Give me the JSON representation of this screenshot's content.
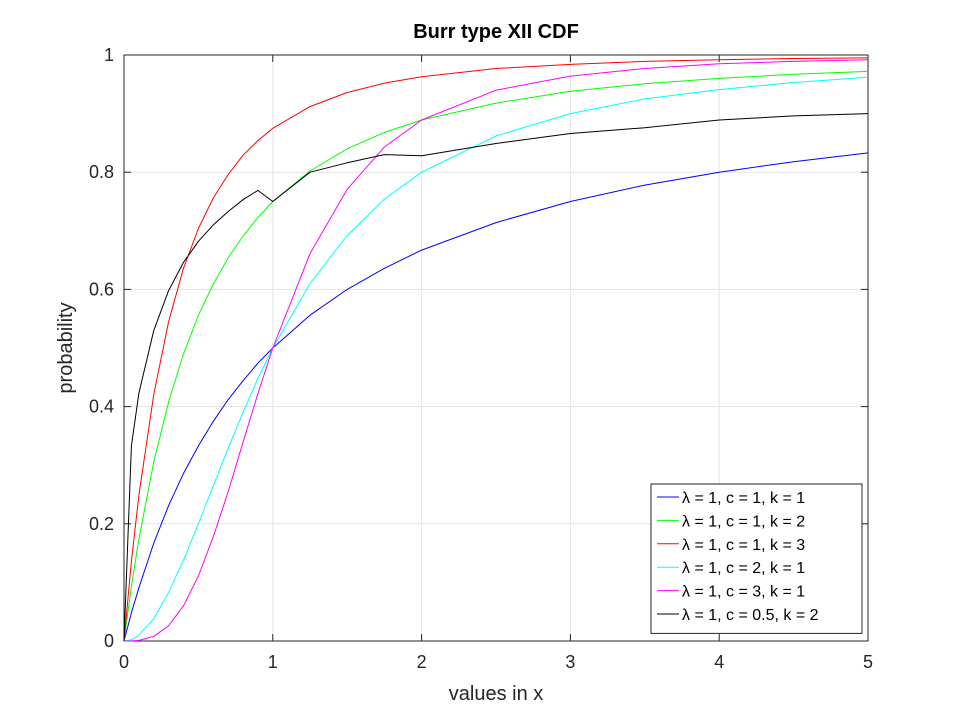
{
  "chart_data": {
    "type": "line",
    "title": "Burr type XII CDF",
    "xlabel": "values in x",
    "ylabel": "probability",
    "xlim": [
      0,
      5
    ],
    "ylim": [
      0,
      1
    ],
    "xticks": [
      0,
      1,
      2,
      3,
      4,
      5
    ],
    "yticks": [
      0,
      0.2,
      0.4,
      0.6,
      0.8,
      1
    ],
    "xtick_labels": [
      "0",
      "1",
      "2",
      "3",
      "4",
      "5"
    ],
    "ytick_labels": [
      "0",
      "0.2",
      "0.4",
      "0.6",
      "0.8",
      "1"
    ],
    "grid": true,
    "legend_position": "bottom-right",
    "x": [
      0,
      0.05,
      0.1,
      0.2,
      0.3,
      0.4,
      0.5,
      0.6,
      0.7,
      0.8,
      0.9,
      1,
      1.25,
      1.5,
      1.75,
      2,
      2.5,
      3,
      3.5,
      4,
      4.5,
      5
    ],
    "series": [
      {
        "name": "λ = 1, c = 1, k = 1",
        "color": "#0000ff",
        "values": [
          0,
          0.048,
          0.091,
          0.167,
          0.231,
          0.286,
          0.333,
          0.375,
          0.412,
          0.444,
          0.474,
          0.5,
          0.556,
          0.6,
          0.636,
          0.667,
          0.714,
          0.75,
          0.778,
          0.8,
          0.818,
          0.833
        ]
      },
      {
        "name": "λ = 1, c = 1, k = 2",
        "color": "#00ff00",
        "values": [
          0,
          0.093,
          0.174,
          0.306,
          0.408,
          0.49,
          0.556,
          0.609,
          0.654,
          0.691,
          0.723,
          0.75,
          0.802,
          0.84,
          0.868,
          0.889,
          0.918,
          0.938,
          0.951,
          0.96,
          0.967,
          0.972
        ]
      },
      {
        "name": "λ = 1, c = 1, k = 3",
        "color": "#ff0000",
        "values": [
          0,
          0.136,
          0.249,
          0.421,
          0.545,
          0.636,
          0.704,
          0.756,
          0.796,
          0.829,
          0.854,
          0.875,
          0.912,
          0.936,
          0.952,
          0.963,
          0.977,
          0.984,
          0.989,
          0.992,
          0.994,
          0.995
        ]
      },
      {
        "name": "λ = 1, c = 2, k = 1",
        "color": "#00ffff",
        "values": [
          0,
          0.002,
          0.01,
          0.038,
          0.083,
          0.138,
          0.2,
          0.265,
          0.329,
          0.39,
          0.448,
          0.5,
          0.61,
          0.692,
          0.754,
          0.8,
          0.862,
          0.9,
          0.925,
          0.941,
          0.953,
          0.962
        ]
      },
      {
        "name": "λ = 1, c = 3, k = 1",
        "color": "#ff00ff",
        "values": [
          0,
          0.0001,
          0.001,
          0.008,
          0.026,
          0.06,
          0.111,
          0.178,
          0.255,
          0.339,
          0.422,
          0.5,
          0.661,
          0.771,
          0.843,
          0.889,
          0.94,
          0.964,
          0.977,
          0.985,
          0.989,
          0.992
        ]
      },
      {
        "name": "λ = 1, c = 0.5, k = 2",
        "color": "#000000",
        "values": [
          0,
          0.333,
          0.423,
          0.53,
          0.598,
          0.646,
          0.682,
          0.71,
          0.733,
          0.753,
          0.769,
          0.75,
          0.8,
          0.816,
          0.83,
          0.828,
          0.849,
          0.866,
          0.876,
          0.889,
          0.896,
          0.9
        ]
      }
    ]
  }
}
